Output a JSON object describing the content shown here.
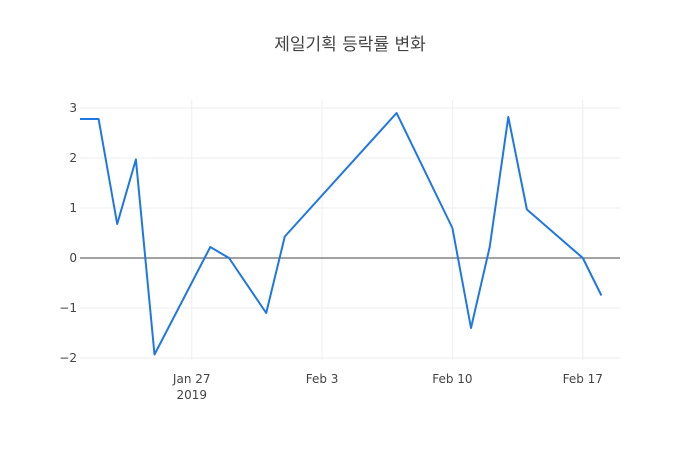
{
  "chart_data": {
    "type": "line",
    "title": "제일기획 등락률 변화",
    "xlabel": "",
    "ylabel": "",
    "x": [
      "2019-01-21",
      "2019-01-22",
      "2019-01-23",
      "2019-01-24",
      "2019-01-25",
      "2019-01-28",
      "2019-01-29",
      "2019-01-31",
      "2019-02-01",
      "2019-02-07",
      "2019-02-10",
      "2019-02-11",
      "2019-02-12",
      "2019-02-13",
      "2019-02-14",
      "2019-02-17",
      "2019-02-18"
    ],
    "series": [
      {
        "name": "",
        "color": "#1f77e4",
        "values": [
          2.78,
          2.78,
          0.68,
          1.97,
          -1.93,
          0.22,
          0.0,
          -1.1,
          0.43,
          2.9,
          0.6,
          -1.4,
          0.22,
          2.82,
          0.97,
          0.0,
          -0.75
        ]
      }
    ],
    "xlim": [
      "2019-01-21",
      "2019-02-19"
    ],
    "ylim": [
      -2.0,
      3.0
    ],
    "y_ticks": [
      3,
      2,
      1,
      0,
      -1,
      -2
    ],
    "y_tick_labels": [
      "3",
      "2",
      "1",
      "0",
      "−1",
      "−2"
    ],
    "x_ticks": [
      "2019-01-27",
      "2019-02-03",
      "2019-02-10",
      "2019-02-17"
    ],
    "x_tick_labels": [
      "Jan 27",
      "Feb 3",
      "Feb 10",
      "Feb 17"
    ],
    "x_tick_sublabel": "2019",
    "grid": true,
    "zero_line": true,
    "legend": "none"
  }
}
